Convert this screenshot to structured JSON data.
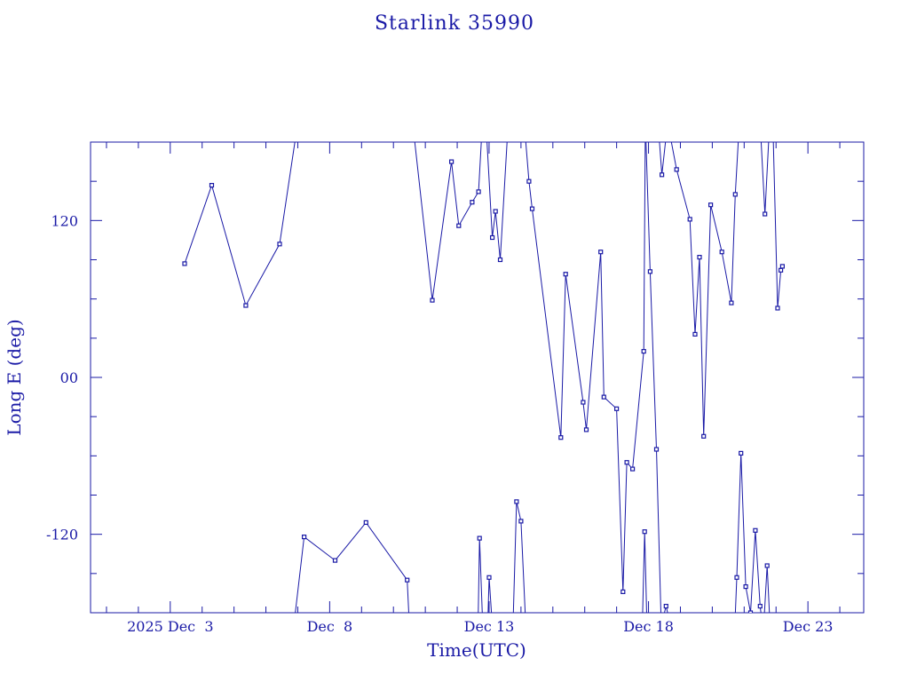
{
  "chart_data": {
    "type": "scatter",
    "title": "Starlink 35990",
    "xlabel": "Time(UTC)",
    "ylabel": "Long E (deg)",
    "x_unit": "days (2025 Dec)",
    "xlim": [
      29.5,
      53.75
    ],
    "ylim": [
      -180,
      180
    ],
    "x_ticks": [
      {
        "x": 32,
        "label": "2025 Dec  3"
      },
      {
        "x": 37,
        "label": "Dec  8"
      },
      {
        "x": 42,
        "label": "Dec 13"
      },
      {
        "x": 47,
        "label": "Dec 18"
      },
      {
        "x": 52,
        "label": "Dec 23"
      }
    ],
    "y_ticks": [
      {
        "y": 120,
        "label": "120"
      },
      {
        "y": 0,
        "label": "00"
      },
      {
        "y": -120,
        "label": "-120"
      }
    ],
    "grid": false,
    "color": "#1a1aa6",
    "series": [
      {
        "points": [
          [
            32.45,
            87
          ],
          [
            33.3,
            147
          ],
          [
            34.37,
            55
          ],
          [
            35.43,
            102
          ],
          [
            36.0,
            195
          ]
        ]
      },
      {
        "points": [
          [
            35.85,
            -195
          ],
          [
            36.2,
            -122
          ],
          [
            37.17,
            -140
          ],
          [
            38.14,
            -111
          ],
          [
            39.43,
            -155
          ],
          [
            39.5,
            -190
          ]
        ]
      },
      {
        "points": [
          [
            39.6,
            195
          ],
          [
            40.22,
            59
          ],
          [
            40.82,
            165
          ],
          [
            41.05,
            116
          ],
          [
            41.47,
            134
          ],
          [
            41.67,
            142
          ],
          [
            41.8,
            200
          ],
          [
            41.9,
            195
          ],
          [
            42.1,
            107
          ],
          [
            42.2,
            127
          ],
          [
            42.35,
            90
          ],
          [
            42.6,
            195
          ]
        ]
      },
      {
        "points": [
          [
            41.65,
            -195
          ],
          [
            41.7,
            -123
          ],
          [
            41.8,
            -190
          ],
          [
            41.95,
            -195
          ],
          [
            42.0,
            -153
          ],
          [
            42.1,
            -190
          ]
        ]
      },
      {
        "points": [
          [
            42.75,
            -190
          ],
          [
            42.86,
            -95
          ],
          [
            43.0,
            -110
          ],
          [
            43.15,
            -190
          ]
        ]
      },
      {
        "points": [
          [
            43.1,
            195
          ],
          [
            43.25,
            150
          ],
          [
            43.35,
            129
          ],
          [
            44.25,
            -46
          ],
          [
            44.4,
            79
          ],
          [
            44.95,
            -19
          ],
          [
            45.05,
            -40
          ],
          [
            45.5,
            96
          ],
          [
            45.6,
            -15
          ],
          [
            46.0,
            -24
          ],
          [
            46.2,
            -164
          ],
          [
            46.32,
            -65
          ],
          [
            46.5,
            -70
          ],
          [
            46.85,
            20
          ],
          [
            46.9,
            195
          ]
        ]
      },
      {
        "points": [
          [
            46.8,
            -195
          ],
          [
            46.88,
            -118
          ],
          [
            46.95,
            -190
          ]
        ]
      },
      {
        "points": [
          [
            46.9,
            195
          ],
          [
            47.05,
            81
          ],
          [
            47.25,
            -55
          ],
          [
            47.4,
            -190
          ],
          [
            47.55,
            -175
          ],
          [
            47.7,
            -190
          ]
        ]
      },
      {
        "points": [
          [
            47.3,
            195
          ],
          [
            47.42,
            155
          ],
          [
            47.6,
            195
          ],
          [
            47.88,
            159
          ],
          [
            48.3,
            121
          ],
          [
            48.46,
            33
          ],
          [
            48.6,
            92
          ],
          [
            48.73,
            -45
          ],
          [
            48.95,
            132
          ],
          [
            49.3,
            96
          ],
          [
            49.6,
            57
          ],
          [
            49.72,
            140
          ],
          [
            49.85,
            195
          ]
        ]
      },
      {
        "points": [
          [
            49.7,
            -195
          ],
          [
            49.77,
            -153
          ],
          [
            49.9,
            -58
          ],
          [
            50.05,
            -160
          ],
          [
            50.2,
            -180
          ],
          [
            50.35,
            -117
          ],
          [
            50.5,
            -175
          ],
          [
            50.6,
            -195
          ]
        ]
      },
      {
        "points": [
          [
            50.5,
            195
          ],
          [
            50.65,
            125
          ],
          [
            50.8,
            195
          ],
          [
            50.9,
            195
          ],
          [
            51.05,
            53
          ],
          [
            51.15,
            82
          ],
          [
            51.2,
            85
          ]
        ]
      },
      {
        "points": [
          [
            50.6,
            -195
          ],
          [
            50.72,
            -144
          ],
          [
            50.82,
            -195
          ]
        ]
      }
    ]
  }
}
